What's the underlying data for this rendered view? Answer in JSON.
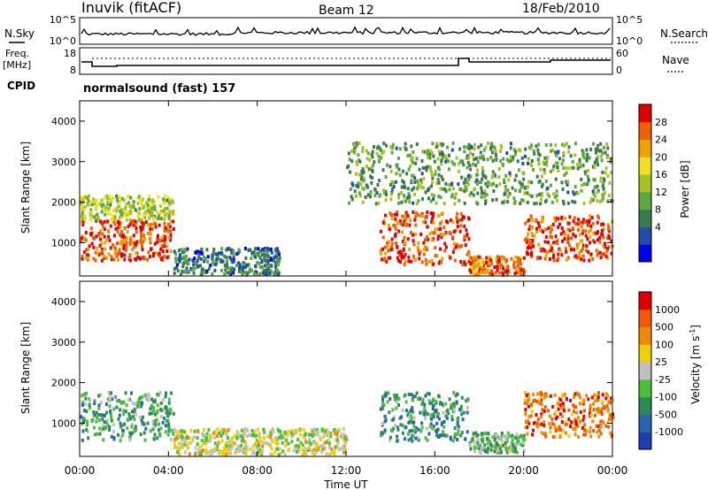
{
  "header": {
    "station": "Inuvik (fitACF)",
    "beam": "Beam 12",
    "date": "18/Feb/2010"
  },
  "noise_panel": {
    "left_label": "N.Sky",
    "right_label": "N.Search",
    "left_ticks": [
      "10^5",
      "10^0"
    ],
    "right_ticks": [
      "10^5",
      "10^0"
    ]
  },
  "freq_panel": {
    "left_label_1": "Freq.",
    "left_label_2": "[MHz]",
    "right_label": "Nave",
    "left_ticks": [
      "18",
      "8"
    ],
    "right_ticks": [
      "60",
      "0"
    ],
    "cpid_label": "CPID",
    "cpid_value": "normalsound (fast) 157"
  },
  "x_axis": {
    "label": "Time UT",
    "ticks": [
      "00:00",
      "04:00",
      "08:00",
      "12:00",
      "16:00",
      "20:00",
      "00:00"
    ]
  },
  "y_axis": {
    "label": "Slant Range [km]",
    "ticks": [
      "1000",
      "2000",
      "3000",
      "4000"
    ]
  },
  "power_colorbar": {
    "label": "Power [dB]",
    "ticks": [
      "28",
      "24",
      "20",
      "16",
      "12",
      "8",
      "4"
    ],
    "colors": [
      "#0000ee",
      "#1e4ea8",
      "#3a7a4a",
      "#5aa840",
      "#a8c020",
      "#f0e020",
      "#f0a000",
      "#f06000",
      "#e00000"
    ]
  },
  "velocity_colorbar": {
    "label": "Velocity [m s-1]",
    "ticks": [
      "1000",
      "500",
      "100",
      "25",
      "-25",
      "-100",
      "-500",
      "-1000"
    ],
    "colors": [
      "#1e3fb0",
      "#2a64b0",
      "#2f8a5a",
      "#4cbf3a",
      "#c0c0c0",
      "#f0d000",
      "#f08a00",
      "#f05a00",
      "#e00000"
    ]
  },
  "chart_data": [
    {
      "type": "heatmap",
      "title": "Power",
      "xlabel": "Time UT",
      "ylabel": "Slant Range [km]",
      "xlim": [
        0,
        24
      ],
      "ylim": [
        180,
        4500
      ],
      "colorbar_label": "Power [dB]",
      "colorbar_range": [
        0,
        32
      ],
      "scatter_regions": [
        {
          "t0": 0.0,
          "t1": 4.2,
          "r0": 600,
          "r1": 1600,
          "value": 28
        },
        {
          "t0": 0.0,
          "t1": 4.2,
          "r0": 1600,
          "r1": 2200,
          "value": 16
        },
        {
          "t0": 4.2,
          "t1": 9.0,
          "r0": 250,
          "r1": 900,
          "value": 8
        },
        {
          "t0": 13.5,
          "t1": 17.5,
          "r0": 500,
          "r1": 1800,
          "value": 28
        },
        {
          "t0": 17.5,
          "t1": 20.0,
          "r0": 250,
          "r1": 700,
          "value": 26
        },
        {
          "t0": 20.0,
          "t1": 24.0,
          "r0": 600,
          "r1": 1700,
          "value": 28
        },
        {
          "t0": 12.0,
          "t1": 24.0,
          "r0": 2000,
          "r1": 3500,
          "value": 12
        }
      ]
    },
    {
      "type": "heatmap",
      "title": "Velocity",
      "xlabel": "Time UT",
      "ylabel": "Slant Range [km]",
      "xlim": [
        0,
        24
      ],
      "ylim": [
        180,
        4500
      ],
      "colorbar_label": "Velocity [m s-1]",
      "colorbar_range": [
        -1000,
        1000
      ],
      "scatter_regions": [
        {
          "t0": 0.0,
          "t1": 4.2,
          "r0": 600,
          "r1": 1800,
          "value": -300
        },
        {
          "t0": 4.2,
          "t1": 12.0,
          "r0": 250,
          "r1": 900,
          "value": 50
        },
        {
          "t0": 13.5,
          "t1": 17.5,
          "r0": 600,
          "r1": 1800,
          "value": -400
        },
        {
          "t0": 17.5,
          "t1": 20.0,
          "r0": 300,
          "r1": 800,
          "value": -200
        },
        {
          "t0": 20.0,
          "t1": 24.0,
          "r0": 700,
          "r1": 1800,
          "value": 600
        }
      ]
    }
  ]
}
